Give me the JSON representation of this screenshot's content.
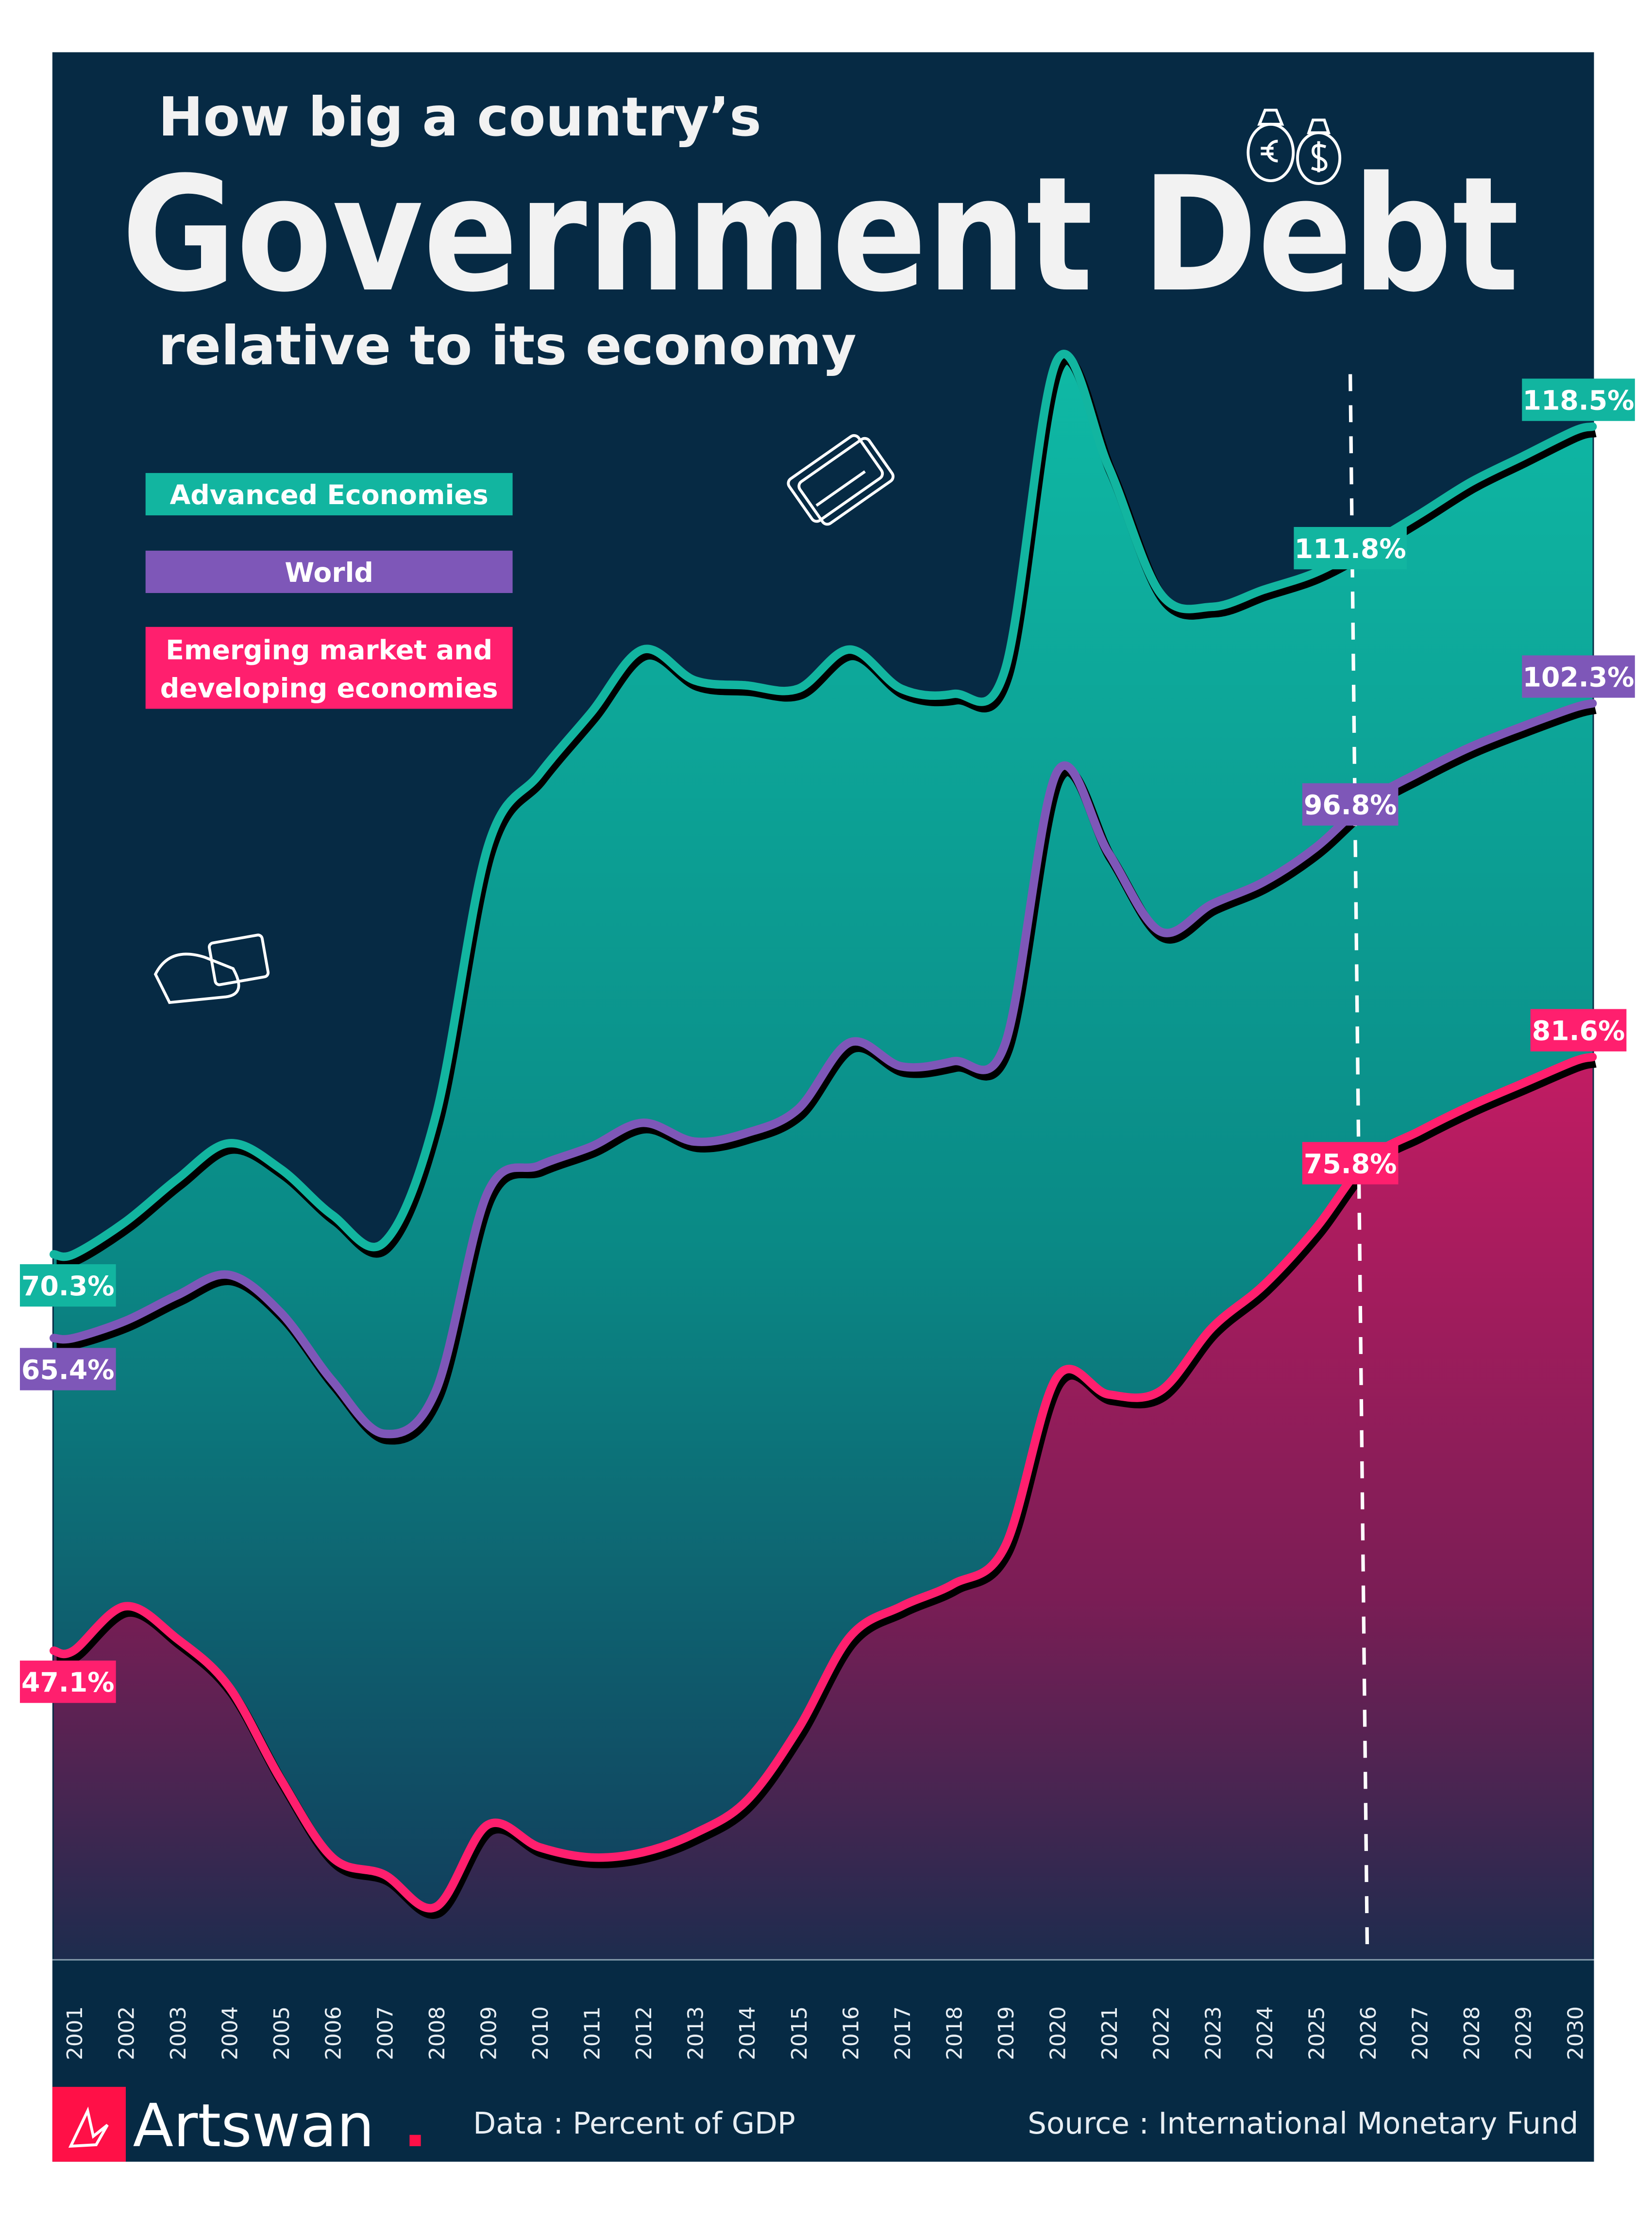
{
  "header": {
    "line1": "How big a country’s",
    "title": "Government Debt",
    "line3": "relative to its economy"
  },
  "legend": [
    {
      "label": "Advanced Economies",
      "color": "#12b5a0"
    },
    {
      "label": "World",
      "color": "#7e57b8"
    },
    {
      "label_lines": [
        "Emerging market and",
        "developing economies"
      ],
      "color": "#ff1f6e"
    }
  ],
  "colors": {
    "background": "#062a44",
    "advanced": "#12b5a0",
    "world": "#7e57b8",
    "emerging": "#ff1f6e"
  },
  "icons": [
    "money-bags-icon",
    "credit-cards-icon",
    "cash-hand-icon"
  ],
  "chart_data": {
    "type": "area",
    "title": "How big a country’s Government Debt relative to its economy",
    "xlabel": "",
    "ylabel": "",
    "unit": "Percent of GDP",
    "forecast_marker_year": 2026,
    "x": [
      2001,
      2002,
      2003,
      2004,
      2005,
      2006,
      2007,
      2008,
      2009,
      2010,
      2011,
      2012,
      2013,
      2014,
      2015,
      2016,
      2017,
      2018,
      2019,
      2020,
      2021,
      2022,
      2023,
      2024,
      2025,
      2026,
      2027,
      2028,
      2029,
      2030
    ],
    "x_tick_labels": [
      "2001",
      "2002",
      "2003",
      "2004",
      "2005",
      "2006",
      "2007",
      "2008",
      "2009",
      "2010",
      "2011",
      "2012",
      "2013",
      "2014",
      "2015",
      "2016",
      "2017",
      "2018",
      "2019",
      "2020",
      "2021",
      "2022",
      "2023",
      "2024",
      "2025",
      "2026",
      "2027",
      "2028",
      "2029",
      "2030"
    ],
    "series": [
      {
        "name": "Advanced Economies",
        "color": "#12b5a0",
        "values": [
          70.3,
          72.2,
          74.7,
          76.8,
          75.3,
          72.6,
          71.0,
          78.4,
          94.1,
          98.4,
          102.0,
          105.7,
          103.9,
          103.6,
          103.4,
          105.7,
          103.4,
          103.1,
          104.5,
          122.6,
          116.4,
          109.0,
          108.2,
          109.2,
          110.2,
          111.8,
          113.6,
          115.5,
          117.0,
          118.5
        ],
        "labels": [
          {
            "year": 2001,
            "text": "70.3%"
          },
          {
            "year": 2026,
            "text": "111.8%"
          },
          {
            "year": 2030,
            "text": "118.5%"
          }
        ]
      },
      {
        "name": "World",
        "color": "#7e57b8",
        "values": [
          65.4,
          66.4,
          67.9,
          69.1,
          66.9,
          62.9,
          59.8,
          62.3,
          73.9,
          75.5,
          76.6,
          78.0,
          76.9,
          77.4,
          78.8,
          82.7,
          81.3,
          81.6,
          82.6,
          98.5,
          93.8,
          89.2,
          90.8,
          92.1,
          94.1,
          96.8,
          98.5,
          100.0,
          101.2,
          102.3
        ],
        "labels": [
          {
            "year": 2001,
            "text": "65.4%"
          },
          {
            "year": 2026,
            "text": "96.8%"
          },
          {
            "year": 2030,
            "text": "102.3%"
          }
        ]
      },
      {
        "name": "Emerging market and developing economies",
        "color": "#ff1f6e",
        "values": [
          47.1,
          49.7,
          47.8,
          45.0,
          39.6,
          35.0,
          34.0,
          32.1,
          36.9,
          35.6,
          35.0,
          35.3,
          36.4,
          38.3,
          42.5,
          47.9,
          49.7,
          51.0,
          53.2,
          63.1,
          62.1,
          62.3,
          66.0,
          68.5,
          71.8,
          75.8,
          77.5,
          79.0,
          80.3,
          81.6
        ],
        "labels": [
          {
            "year": 2001,
            "text": "47.1%"
          },
          {
            "year": 2026,
            "text": "75.8%"
          },
          {
            "year": 2030,
            "text": "81.6%"
          }
        ]
      }
    ],
    "grid": false,
    "legend_position": "top-left"
  },
  "footer": {
    "brand": "Artswan",
    "data_note": "Data : Percent of GDP",
    "source": "Source : International Monetary Fund"
  }
}
